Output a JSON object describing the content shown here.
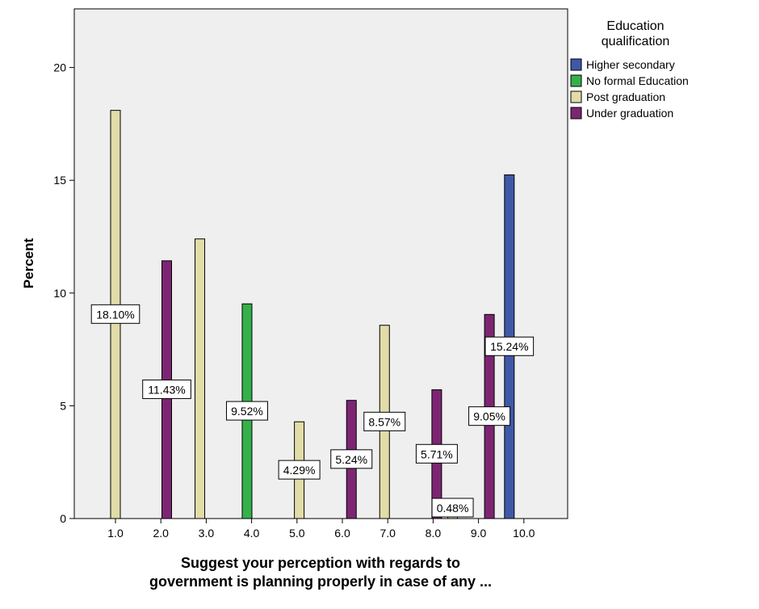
{
  "chart_data": {
    "type": "bar",
    "xlabel_lines": [
      "Suggest your perception with regards to",
      "government is planning properly in case of any ..."
    ],
    "ylabel": "Percent",
    "ylim": [
      0,
      22.6
    ],
    "yticks": [
      0,
      5,
      10,
      15,
      20
    ],
    "categories": [
      "1.0",
      "2.0",
      "3.0",
      "4.0",
      "5.0",
      "6.0",
      "7.0",
      "8.0",
      "9.0",
      "10.0"
    ],
    "legend": {
      "title_lines": [
        "Education",
        "qualification"
      ],
      "placement": "right",
      "items": [
        {
          "name": "Higher secondary",
          "color": "#3f58a8"
        },
        {
          "name": "No formal Education",
          "color": "#35b04a"
        },
        {
          "name": "Post graduation",
          "color": "#e1dca8"
        },
        {
          "name": "Under graduation",
          "color": "#7d2573"
        }
      ]
    },
    "bars": [
      {
        "x": 1.0,
        "value": 18.1,
        "label": "18.10%",
        "series": "Post graduation"
      },
      {
        "x": 2.13,
        "value": 11.43,
        "label": "11.43%",
        "series": "Under graduation"
      },
      {
        "x": 2.86,
        "value": 12.4,
        "label": "",
        "series": "Post graduation"
      },
      {
        "x": 3.9,
        "value": 9.52,
        "label": "9.52%",
        "series": "No formal Education"
      },
      {
        "x": 5.05,
        "value": 4.29,
        "label": "4.29%",
        "series": "Post graduation"
      },
      {
        "x": 6.2,
        "value": 5.24,
        "label": "5.24%",
        "series": "Under graduation"
      },
      {
        "x": 6.93,
        "value": 8.57,
        "label": "8.57%",
        "series": "Post graduation"
      },
      {
        "x": 8.08,
        "value": 5.71,
        "label": "5.71%",
        "series": "Under graduation"
      },
      {
        "x": 8.43,
        "value": 0.48,
        "label": "0.48%",
        "series": "Post graduation"
      },
      {
        "x": 9.24,
        "value": 9.05,
        "label": "9.05%",
        "series": "Under graduation"
      },
      {
        "x": 9.68,
        "value": 15.24,
        "label": "15.24%",
        "series": "Higher secondary"
      }
    ],
    "colors": {
      "plot_bg": "#efefef",
      "axis": "#000000",
      "bar_stroke": "#000000"
    }
  }
}
